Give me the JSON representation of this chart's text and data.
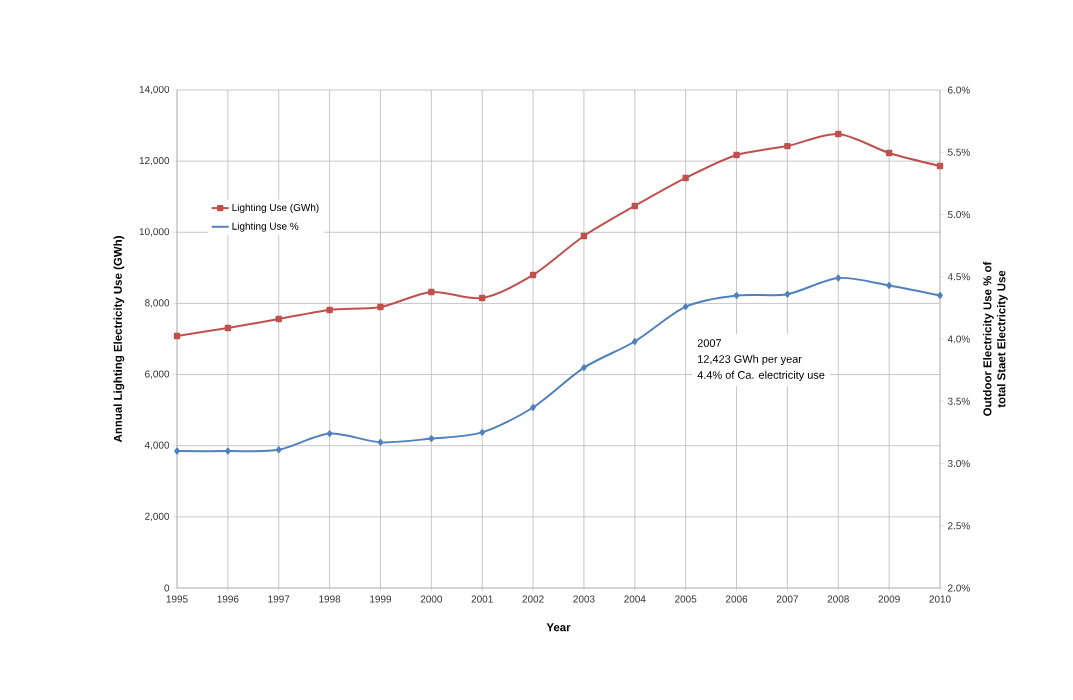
{
  "chart_data": {
    "type": "line",
    "xlabel": "Year",
    "ylabel": "Annual Lighting Electricity Use (GWh)",
    "y2label": "Outdoor Electricity Use % of total Staet Electricity Use",
    "categories": [
      "1995",
      "1996",
      "1997",
      "1998",
      "1999",
      "2000",
      "2001",
      "2002",
      "2003",
      "2004",
      "2005",
      "2006",
      "2007",
      "2008",
      "2009",
      "2010"
    ],
    "series": [
      {
        "name": "Lighting Use (GWh)",
        "color": "#c0504d",
        "marker": "square",
        "values": [
          7085,
          7310,
          7563,
          7816,
          7900,
          8322,
          8153,
          8800,
          9896,
          10740,
          11527,
          12173,
          12423,
          12763,
          12229,
          11864
        ]
      },
      {
        "name": "Lighting Use %",
        "color": "#4f81bd",
        "marker": "diamond",
        "axis": "y2",
        "values": [
          3.1,
          3.1,
          3.11,
          3.24,
          3.17,
          3.2,
          3.25,
          3.45,
          3.77,
          3.98,
          4.26,
          4.35,
          4.36,
          4.49,
          4.43,
          4.35
        ]
      }
    ],
    "ylim": [
      0,
      14000
    ],
    "yticks": [
      {
        "value": 0,
        "label": "0"
      },
      {
        "value": 2000,
        "label": "2,000"
      },
      {
        "value": 4000,
        "label": "4,000"
      },
      {
        "value": 6000,
        "label": "6,000"
      },
      {
        "value": 8000,
        "label": "8,000"
      },
      {
        "value": 10000,
        "label": "10,000"
      },
      {
        "value": 12000,
        "label": "12,000"
      },
      {
        "value": 14000,
        "label": "14,000"
      }
    ],
    "y2lim": [
      2.0,
      6.0
    ],
    "y2ticks": [
      {
        "value": 2.0,
        "label": "2.0%"
      },
      {
        "value": 2.5,
        "label": "2.5%"
      },
      {
        "value": 3.0,
        "label": "3.0%"
      },
      {
        "value": 3.5,
        "label": "3.5%"
      },
      {
        "value": 4.0,
        "label": "4.0%"
      },
      {
        "value": 4.5,
        "label": "4.5%"
      },
      {
        "value": 5.0,
        "label": "5.0%"
      },
      {
        "value": 5.5,
        "label": "5.5%"
      },
      {
        "value": 6.0,
        "label": "6.0%"
      }
    ],
    "annotations": [
      "2007",
      "12,423 GWh per year",
      "4.4% of Ca. electricity use"
    ],
    "grid": true,
    "legend": "top left",
    "line_style": "solid"
  }
}
